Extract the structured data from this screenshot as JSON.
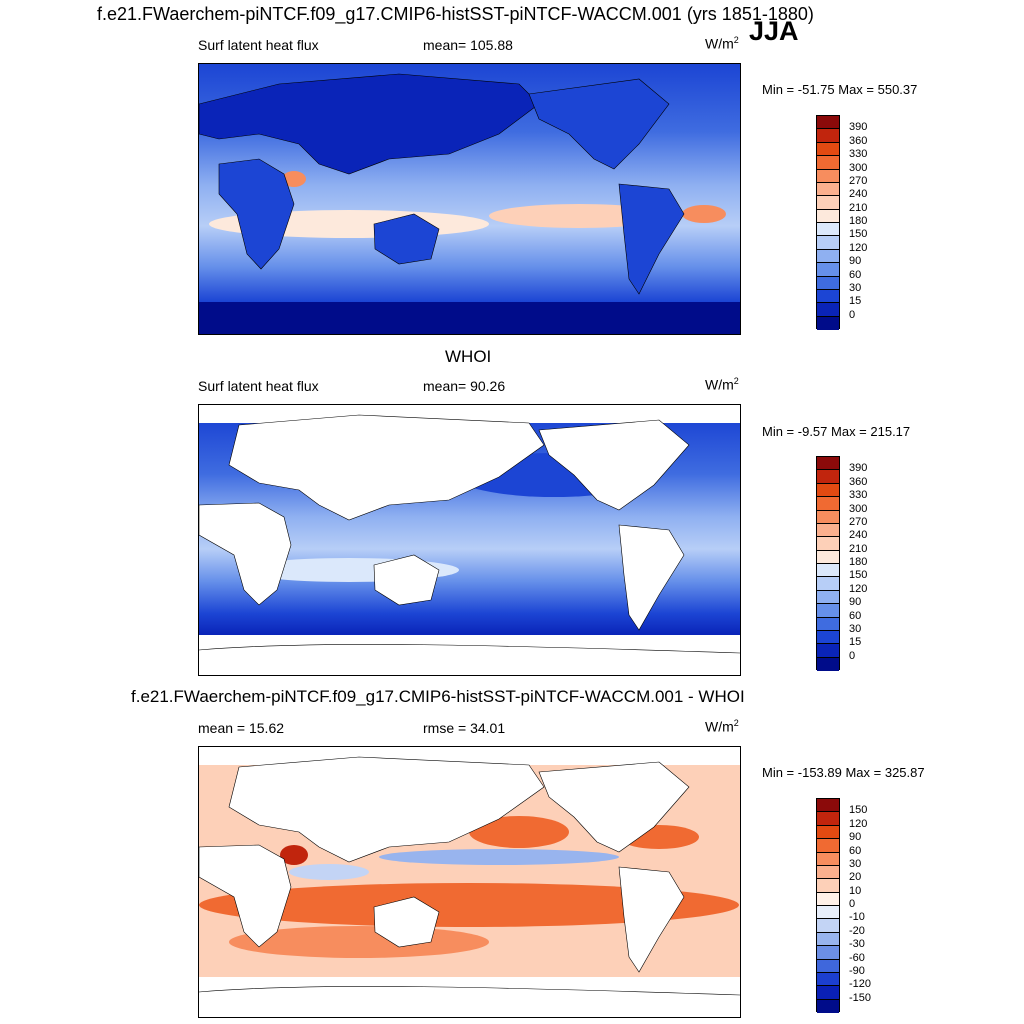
{
  "main_title": "f.e21.FWaerchem-piNTCF.f09_g17.CMIP6-histSST-piNTCF-WACCM.001 (yrs 1851-1880)",
  "season": "JJA",
  "panels": [
    {
      "title": "",
      "left_label": "Surf latent heat flux",
      "center_label": "mean= 105.88",
      "units": "W/m",
      "units_sup": "2",
      "minmax": "Min = -51.75 Max = 550.37",
      "colorbar": {
        "labels": [
          "390",
          "360",
          "330",
          "300",
          "270",
          "240",
          "210",
          "180",
          "150",
          "120",
          "90",
          "60",
          "30",
          "15",
          "0"
        ],
        "colors": [
          "#8b0a0a",
          "#c1250d",
          "#e24a12",
          "#f06a32",
          "#f78d5e",
          "#fbb08e",
          "#fdd0b8",
          "#fde9dc",
          "#dbe8fb",
          "#b7cef7",
          "#8fb0f1",
          "#6690ea",
          "#3f6ce0",
          "#1c45d4",
          "#0a24b8",
          "#000c8a"
        ]
      }
    },
    {
      "title": "WHOI",
      "left_label": "Surf latent heat flux",
      "center_label": "mean=  90.26",
      "units": "W/m",
      "units_sup": "2",
      "minmax": "Min =  -9.57 Max = 215.17",
      "colorbar": {
        "labels": [
          "390",
          "360",
          "330",
          "300",
          "270",
          "240",
          "210",
          "180",
          "150",
          "120",
          "90",
          "60",
          "30",
          "15",
          "0"
        ],
        "colors": [
          "#8b0a0a",
          "#c1250d",
          "#e24a12",
          "#f06a32",
          "#f78d5e",
          "#fbb08e",
          "#fdd0b8",
          "#fde9dc",
          "#dbe8fb",
          "#b7cef7",
          "#8fb0f1",
          "#6690ea",
          "#3f6ce0",
          "#1c45d4",
          "#0a24b8",
          "#000c8a"
        ]
      }
    },
    {
      "title": "f.e21.FWaerchem-piNTCF.f09_g17.CMIP6-histSST-piNTCF-WACCM.001 - WHOI",
      "left_label": "mean =  15.62",
      "center_label": "rmse =  34.01",
      "units": "W/m",
      "units_sup": "2",
      "minmax": "Min = -153.89 Max = 325.87",
      "colorbar": {
        "labels": [
          "150",
          "120",
          "90",
          "60",
          "30",
          "20",
          "10",
          "0",
          "-10",
          "-20",
          "-30",
          "-60",
          "-90",
          "-120",
          "-150"
        ],
        "colors": [
          "#8b0a0a",
          "#c1250d",
          "#e24a12",
          "#f06a32",
          "#f78d5e",
          "#fbb08e",
          "#fdd0b8",
          "#fff1e8",
          "#e8effb",
          "#c3d4f5",
          "#98b4ee",
          "#6c8fe6",
          "#3f67dc",
          "#1c3fd0",
          "#0a20b6",
          "#000c8a"
        ]
      }
    }
  ],
  "colors": {
    "land_white": "#ffffff",
    "coast": "#000000"
  }
}
